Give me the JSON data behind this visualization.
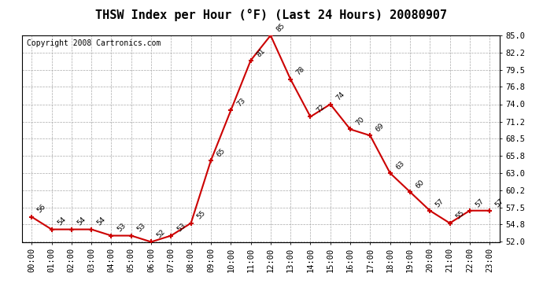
{
  "title": "THSW Index per Hour (°F) (Last 24 Hours) 20080907",
  "copyright": "Copyright 2008 Cartronics.com",
  "hours": [
    "00:00",
    "01:00",
    "02:00",
    "03:00",
    "04:00",
    "05:00",
    "06:00",
    "07:00",
    "08:00",
    "09:00",
    "10:00",
    "11:00",
    "12:00",
    "13:00",
    "14:00",
    "15:00",
    "16:00",
    "17:00",
    "18:00",
    "19:00",
    "20:00",
    "21:00",
    "22:00",
    "23:00"
  ],
  "values": [
    56,
    54,
    54,
    54,
    53,
    53,
    52,
    53,
    55,
    65,
    73,
    81,
    85,
    78,
    72,
    74,
    70,
    69,
    63,
    60,
    57,
    55,
    57,
    57
  ],
  "ylim": [
    52.0,
    85.0
  ],
  "yticks": [
    52.0,
    54.8,
    57.5,
    60.2,
    63.0,
    65.8,
    68.5,
    71.2,
    74.0,
    76.8,
    79.5,
    82.2,
    85.0
  ],
  "line_color": "#cc0000",
  "marker_color": "#cc0000",
  "bg_color": "#ffffff",
  "plot_bg_color": "#ffffff",
  "grid_color": "#aaaaaa",
  "title_fontsize": 11,
  "copyright_fontsize": 7,
  "tick_fontsize": 7.5
}
